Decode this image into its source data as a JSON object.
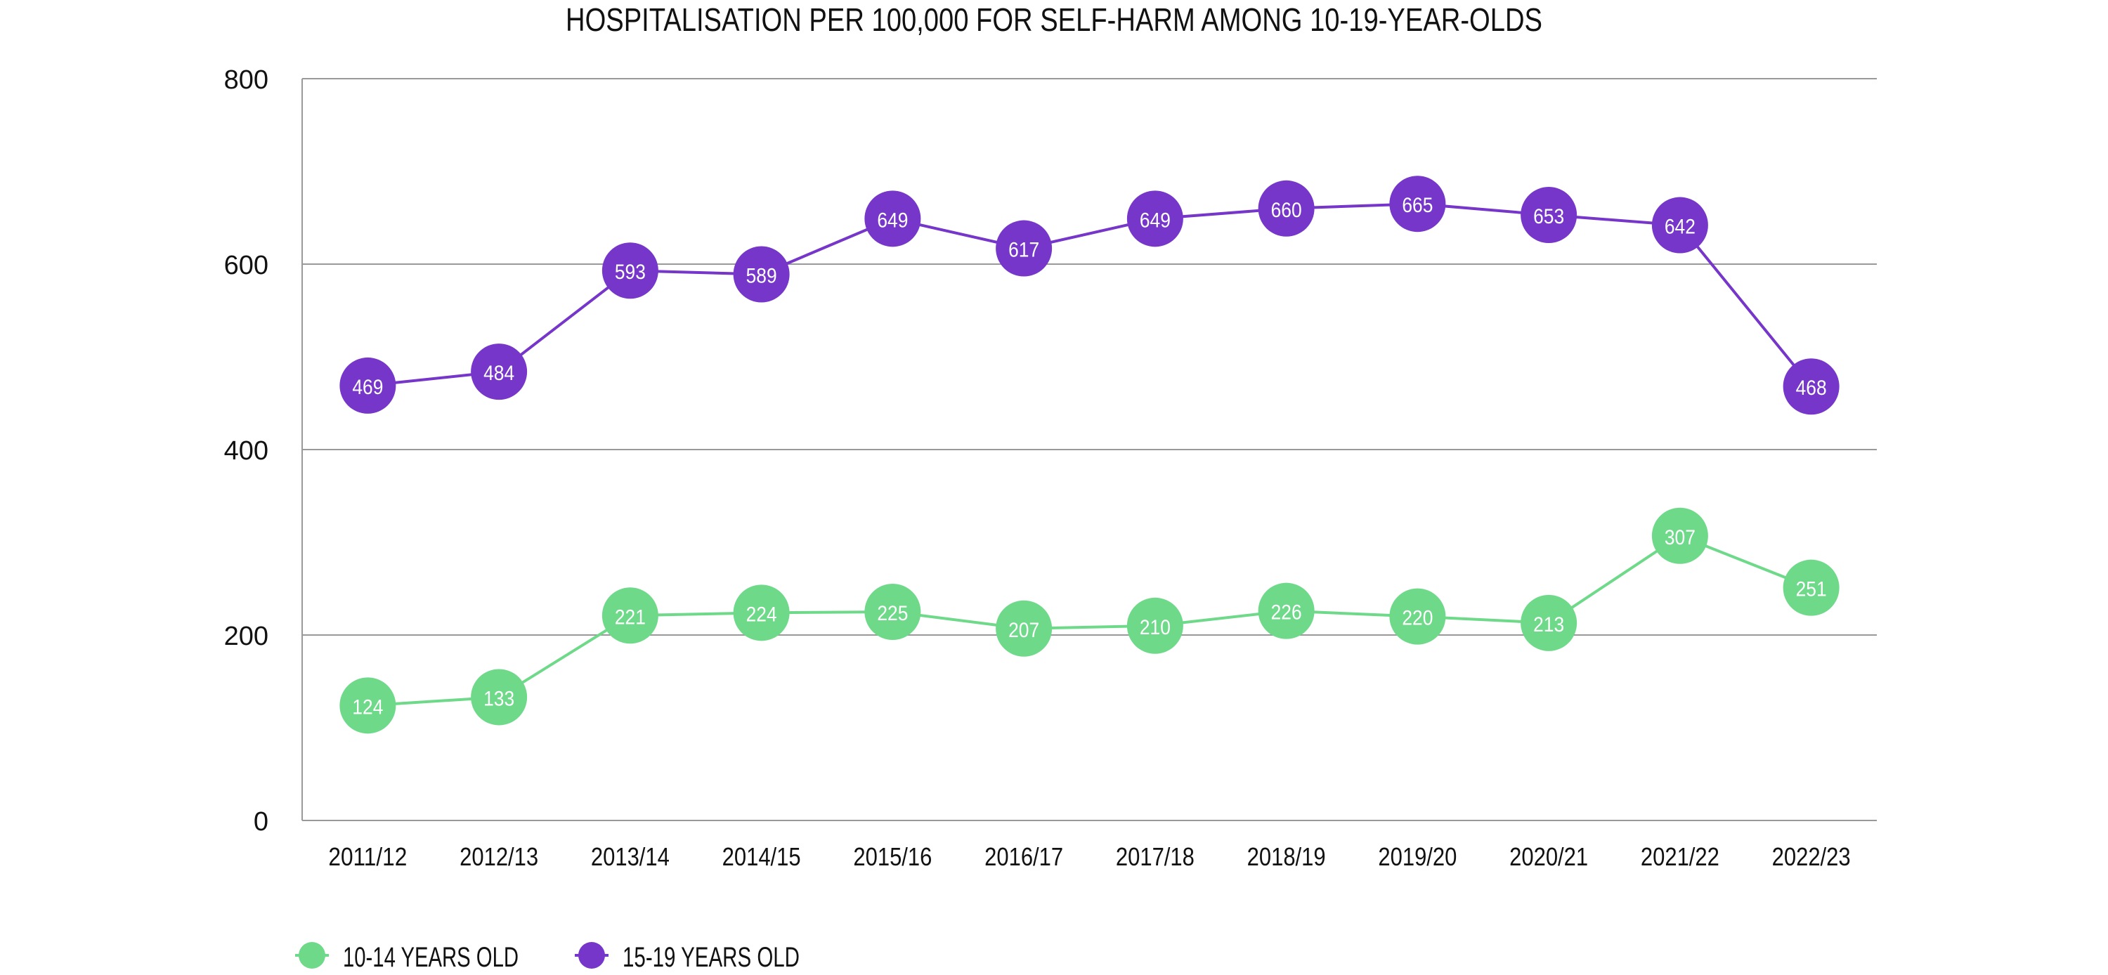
{
  "chart_data": {
    "type": "line",
    "title": "HOSPITALISATION PER 100,000 FOR SELF-HARM AMONG 10-19-YEAR-OLDS",
    "xlabel": "",
    "ylabel": "",
    "ylim": [
      0,
      800
    ],
    "yticks": [
      0,
      200,
      400,
      600,
      800
    ],
    "grid": true,
    "legend_position": "bottom-left",
    "categories": [
      "2011/12",
      "2012/13",
      "2013/14",
      "2014/15",
      "2015/16",
      "2016/17",
      "2017/18",
      "2018/19",
      "2019/20",
      "2020/21",
      "2021/22",
      "2022/23"
    ],
    "series": [
      {
        "name": "10-14 YEARS OLD",
        "color": "#6FD98A",
        "values": [
          124,
          133,
          221,
          224,
          225,
          207,
          210,
          226,
          220,
          213,
          307,
          251
        ]
      },
      {
        "name": "15-19 YEARS OLD",
        "color": "#7636C9",
        "values": [
          469,
          484,
          593,
          589,
          649,
          617,
          649,
          660,
          665,
          653,
          642,
          468
        ]
      }
    ]
  }
}
